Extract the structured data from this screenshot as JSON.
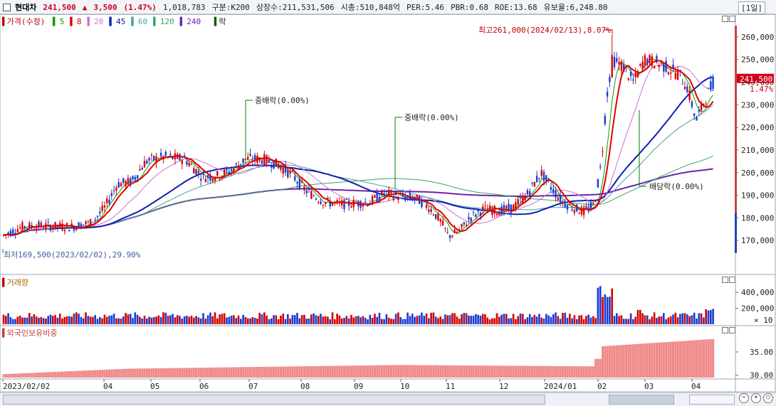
{
  "header": {
    "name": "현대차",
    "price": "241,500",
    "change_arrow": "▲",
    "change": "3,500",
    "change_pct": "(1.47%)",
    "volume": "1,018,783",
    "category": "구분:K200",
    "shares": "상장수:211,531,506",
    "market_cap": "시총:510,848억",
    "per": "PER:5.46",
    "pbr": "PBR:0.68",
    "roe": "ROE:13.68",
    "float": "유보율:6,248.80",
    "period": "[1일]"
  },
  "legend": {
    "price_label": "가격(수정)",
    "ma": [
      {
        "label": "5",
        "color": "#00a000"
      },
      {
        "label": "8",
        "color": "#e00000"
      },
      {
        "label": "20",
        "color": "#d070d0"
      },
      {
        "label": "45",
        "color": "#1020b0"
      },
      {
        "label": "60",
        "color": "#4aa0a0"
      },
      {
        "label": "120",
        "color": "#30a860"
      },
      {
        "label": "240",
        "color": "#7020b0"
      }
    ],
    "drop_label": "락"
  },
  "price_axis": {
    "ticks": [
      "260,000",
      "250,000",
      "240,000",
      "230,000",
      "220,000",
      "210,000",
      "200,000",
      "190,000",
      "180,000",
      "170,000"
    ],
    "current_price": "241,500",
    "current_pct": "1.47%"
  },
  "annotations": {
    "high": "최고261,000(2024/02/13),8.07%",
    "low": "최저169,500(2023/02/02),29.90%",
    "interim_div_1": "중배락(0.00%)",
    "interim_div_2": "중배락(0.00%)",
    "dividend": "배당락(0.00%)"
  },
  "volume_pane": {
    "label": "거래량",
    "ticks": [
      "400,000",
      "200,000"
    ],
    "unit": "× 10"
  },
  "foreign_pane": {
    "label": "외국인보유비중",
    "ticks": [
      "35.00",
      "30.00"
    ]
  },
  "x_axis": {
    "labels": [
      "2023/02/02",
      "04",
      "05",
      "06",
      "07",
      "08",
      "09",
      "10",
      "11",
      "12",
      "2024/01",
      "02",
      "03",
      "04"
    ]
  },
  "chart_data": {
    "type": "candlestick",
    "ylim": [
      160000,
      265000
    ],
    "x_labels": [
      "2023/02/02",
      "04",
      "05",
      "06",
      "07",
      "08",
      "09",
      "10",
      "11",
      "12",
      "2024/01",
      "02",
      "03",
      "04"
    ],
    "close_path": [
      [
        "2023/02",
        171000
      ],
      [
        "2023/03",
        174000
      ],
      [
        "2023/04",
        188000
      ],
      [
        "2023/05",
        203000
      ],
      [
        "2023/06",
        197000
      ],
      [
        "2023/07",
        205000
      ],
      [
        "2023/08",
        186000
      ],
      [
        "2023/09",
        186000
      ],
      [
        "2023/10",
        190000
      ],
      [
        "2023/11",
        172000
      ],
      [
        "2023/12",
        184000
      ],
      [
        "2024/01",
        186000
      ],
      [
        "2024/02",
        250000
      ],
      [
        "2024/03",
        246000
      ],
      [
        "2024/04",
        241500
      ]
    ],
    "volume_peak": 500000,
    "foreign_ownership_range": [
      29.5,
      38.5
    ],
    "series_colors": {
      "up": "#e00000",
      "down": "#1a3bd0"
    }
  }
}
